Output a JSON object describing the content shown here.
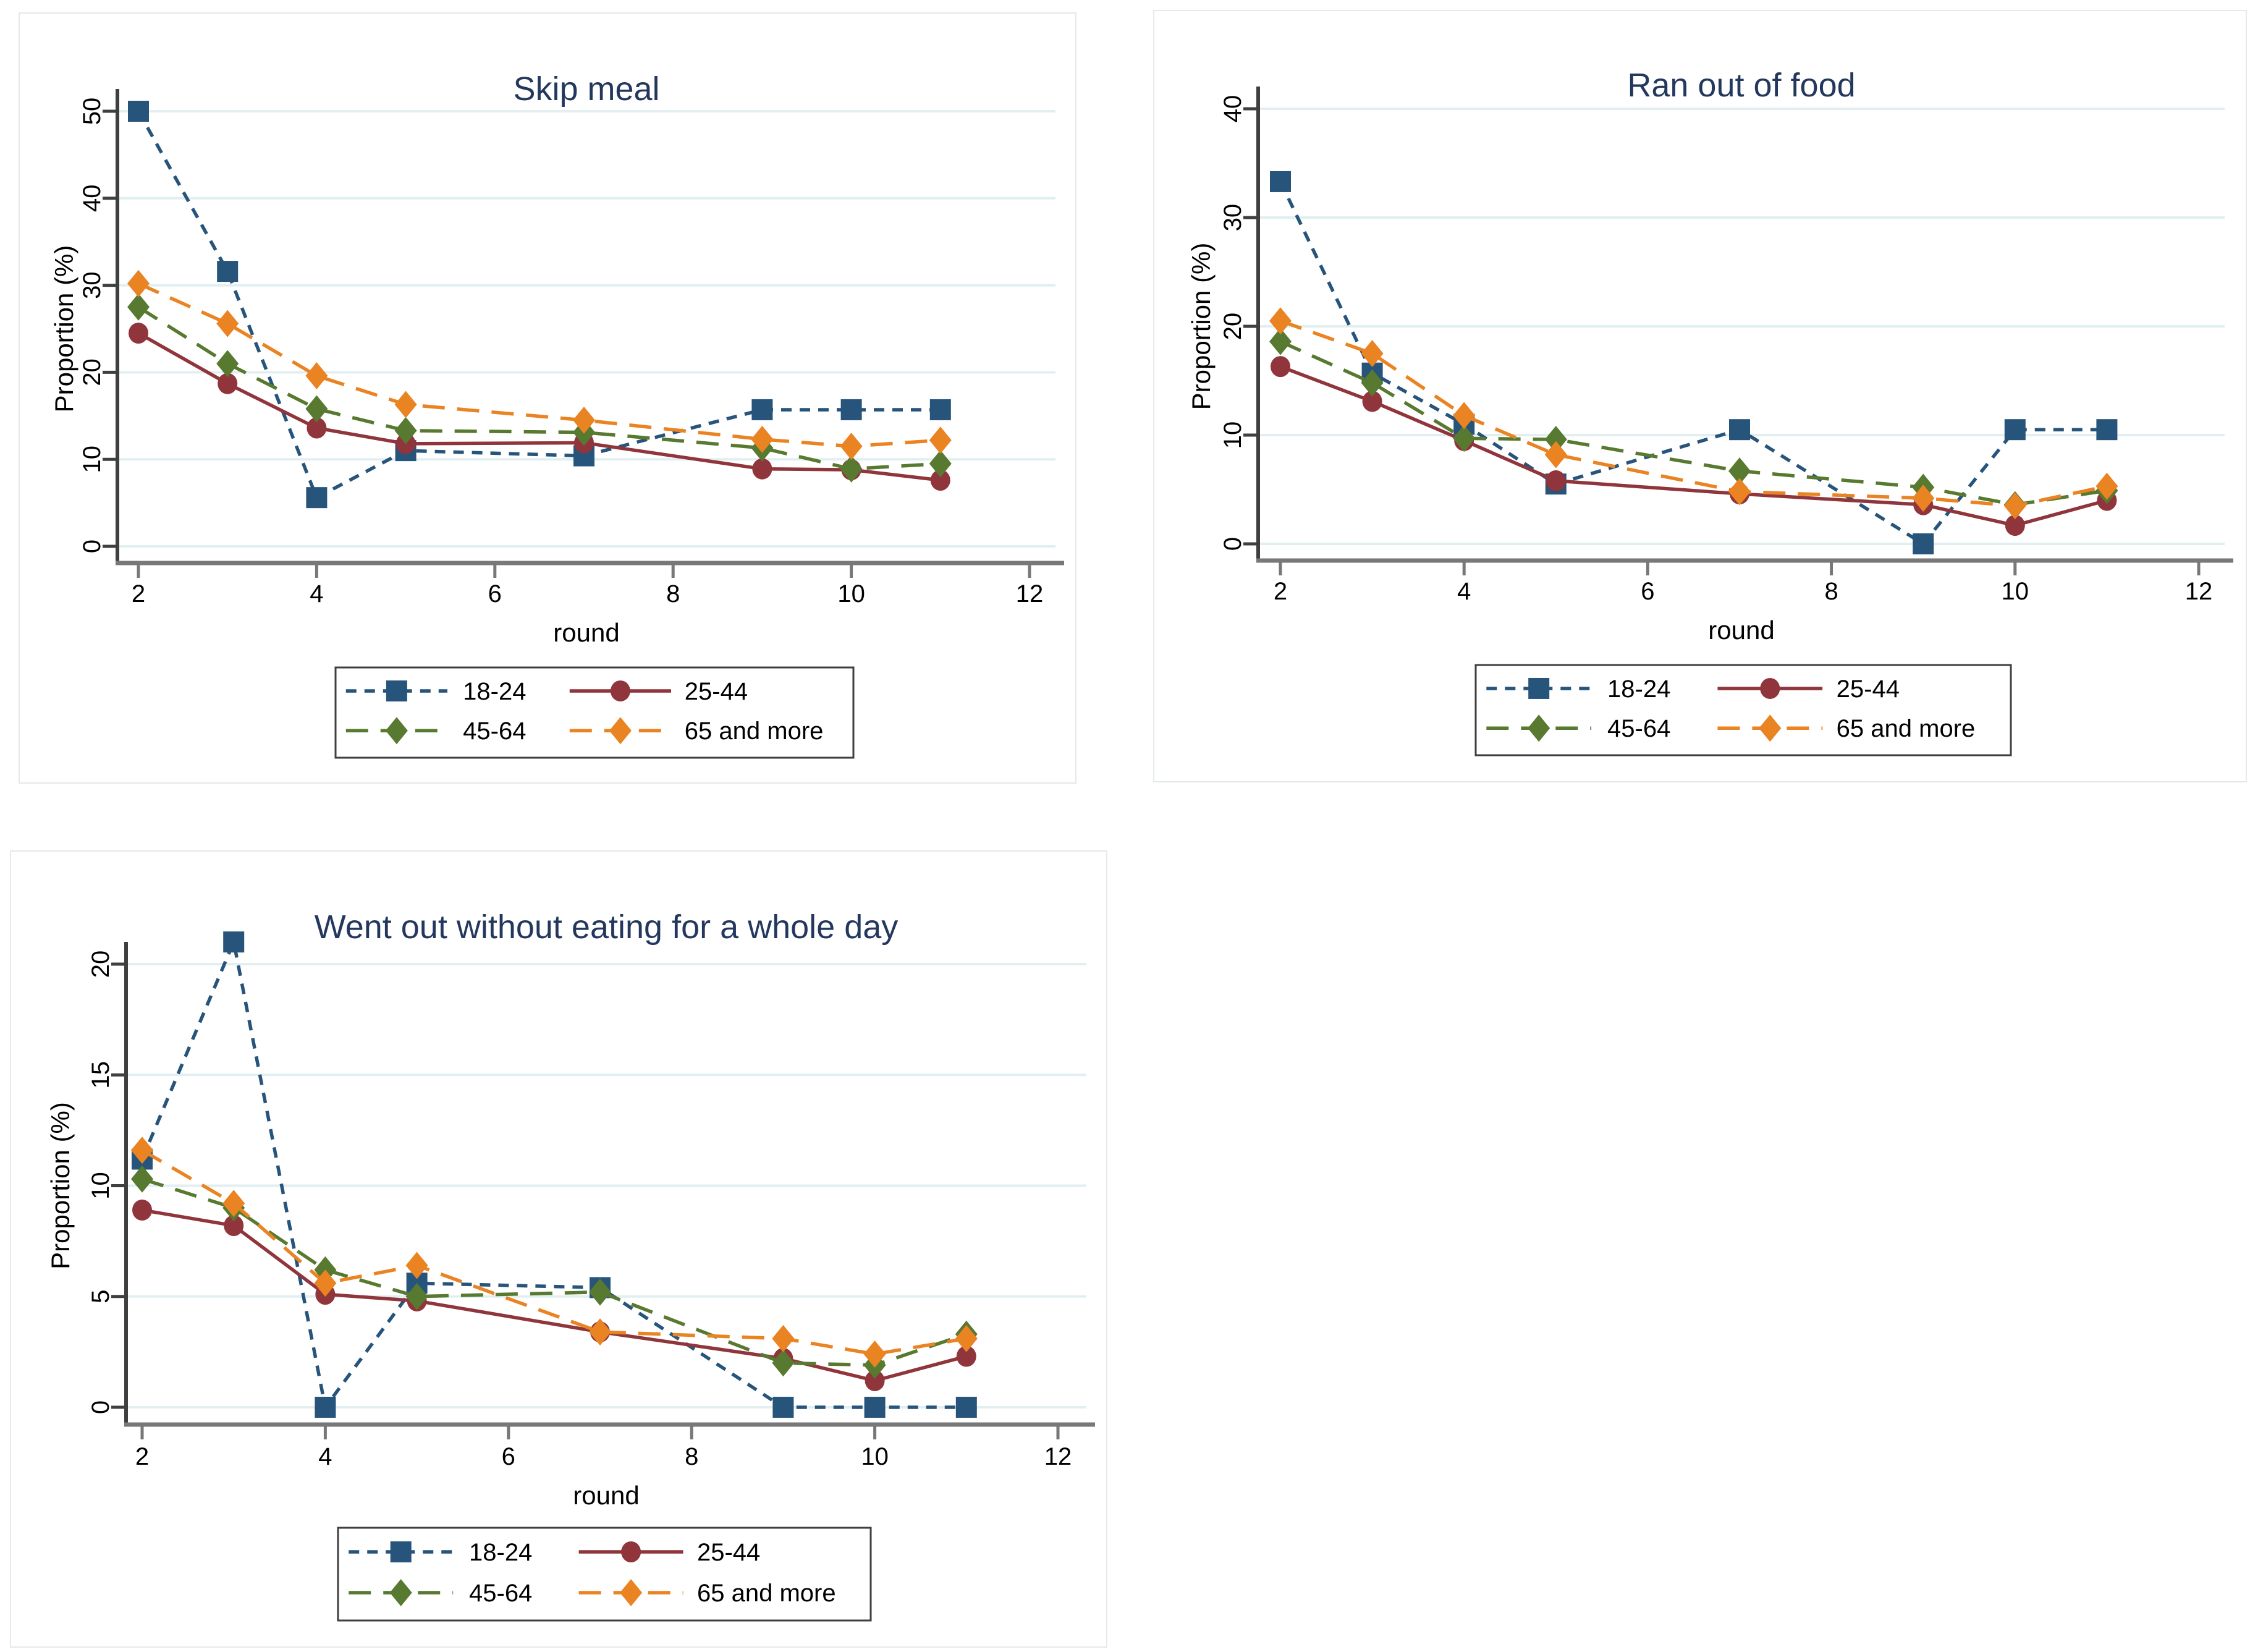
{
  "page": {
    "background": "#ffffff"
  },
  "colors": {
    "title": "#24385e",
    "tick_text": "#000000",
    "gridline": "#e1eff1",
    "y_axis": "#3f3f3f",
    "x_axis": "#787878",
    "legend_border": "#3f3f3f",
    "panel_border": "#e4e9eb",
    "series_navy": "#27547b",
    "series_maroon": "#90353b",
    "series_green": "#577a30",
    "series_orange": "#ea8322"
  },
  "legend": {
    "labels": [
      "18-24",
      "25-44",
      "45-64",
      "65 and more"
    ]
  },
  "series_styles": [
    {
      "name": "18-24",
      "color_key": "series_navy",
      "marker_icon": "square-marker-icon",
      "line_style": "dashed-short"
    },
    {
      "name": "25-44",
      "color_key": "series_maroon",
      "marker_icon": "circle-marker-icon",
      "line_style": "solid"
    },
    {
      "name": "45-64",
      "color_key": "series_green",
      "marker_icon": "diamond-marker-icon",
      "line_style": "dashed-long"
    },
    {
      "name": "65 and more",
      "color_key": "series_orange",
      "marker_icon": "diamond-marker-icon",
      "line_style": "dashed-long"
    }
  ],
  "chart_data": [
    {
      "type": "line",
      "title": "Skip meal",
      "xlabel": "round",
      "ylabel": "Proportion (%)",
      "x": [
        2,
        3,
        4,
        5,
        7,
        9,
        10,
        11
      ],
      "x_ticks": [
        2,
        4,
        6,
        8,
        10,
        12
      ],
      "y_ticks": [
        0,
        10,
        20,
        30,
        40,
        50
      ],
      "xlim": [
        2,
        12
      ],
      "ylim": [
        0,
        50
      ],
      "grid": "horizontal",
      "legend_position": "bottom",
      "series": [
        {
          "name": "18-24",
          "values": [
            50.0,
            31.6,
            5.6,
            11.0,
            10.4,
            15.7,
            15.7,
            15.7
          ]
        },
        {
          "name": "25-44",
          "values": [
            24.5,
            18.7,
            13.6,
            11.8,
            11.9,
            8.9,
            8.8,
            7.6
          ]
        },
        {
          "name": "45-64",
          "values": [
            27.5,
            21.0,
            15.8,
            13.3,
            13.1,
            11.3,
            8.9,
            9.5
          ]
        },
        {
          "name": "65 and more",
          "values": [
            30.2,
            25.6,
            19.6,
            16.3,
            14.5,
            12.3,
            11.5,
            12.2
          ]
        }
      ]
    },
    {
      "type": "line",
      "title": "Ran out of food",
      "xlabel": "round",
      "ylabel": "Proportion (%)",
      "x": [
        2,
        3,
        4,
        5,
        7,
        9,
        10,
        11
      ],
      "x_ticks": [
        2,
        4,
        6,
        8,
        10,
        12
      ],
      "y_ticks": [
        0,
        10,
        20,
        30,
        40
      ],
      "xlim": [
        2,
        12
      ],
      "ylim": [
        0,
        40
      ],
      "grid": "horizontal",
      "legend_position": "bottom",
      "series": [
        {
          "name": "18-24",
          "values": [
            33.3,
            15.7,
            11.0,
            5.5,
            10.5,
            0.0,
            10.5,
            10.5
          ]
        },
        {
          "name": "25-44",
          "values": [
            16.3,
            13.1,
            9.5,
            5.8,
            4.6,
            3.6,
            1.7,
            4.0
          ]
        },
        {
          "name": "45-64",
          "values": [
            18.6,
            14.8,
            9.7,
            9.6,
            6.7,
            5.2,
            3.6,
            4.9
          ]
        },
        {
          "name": "65 and more",
          "values": [
            20.5,
            17.5,
            11.8,
            8.2,
            4.8,
            4.2,
            3.5,
            5.3
          ]
        }
      ]
    },
    {
      "type": "line",
      "title": "Went out without eating for a whole day",
      "xlabel": "round",
      "ylabel": "Proportion (%)",
      "x": [
        2,
        3,
        4,
        5,
        7,
        9,
        10,
        11
      ],
      "x_ticks": [
        2,
        4,
        6,
        8,
        10,
        12
      ],
      "y_ticks": [
        0,
        5,
        10,
        15,
        20
      ],
      "xlim": [
        2,
        12
      ],
      "ylim": [
        0,
        21
      ],
      "grid": "horizontal",
      "legend_position": "bottom",
      "series": [
        {
          "name": "18-24",
          "values": [
            11.2,
            21.0,
            0.0,
            5.6,
            5.4,
            0.0,
            0.0,
            0.0
          ]
        },
        {
          "name": "25-44",
          "values": [
            8.9,
            8.2,
            5.1,
            4.8,
            3.4,
            2.2,
            1.2,
            2.3
          ]
        },
        {
          "name": "45-64",
          "values": [
            10.3,
            9.0,
            6.2,
            5.0,
            5.2,
            2.0,
            1.9,
            3.3
          ]
        },
        {
          "name": "65 and more",
          "values": [
            11.6,
            9.2,
            5.6,
            6.4,
            3.4,
            3.1,
            2.4,
            3.1
          ]
        }
      ]
    }
  ]
}
